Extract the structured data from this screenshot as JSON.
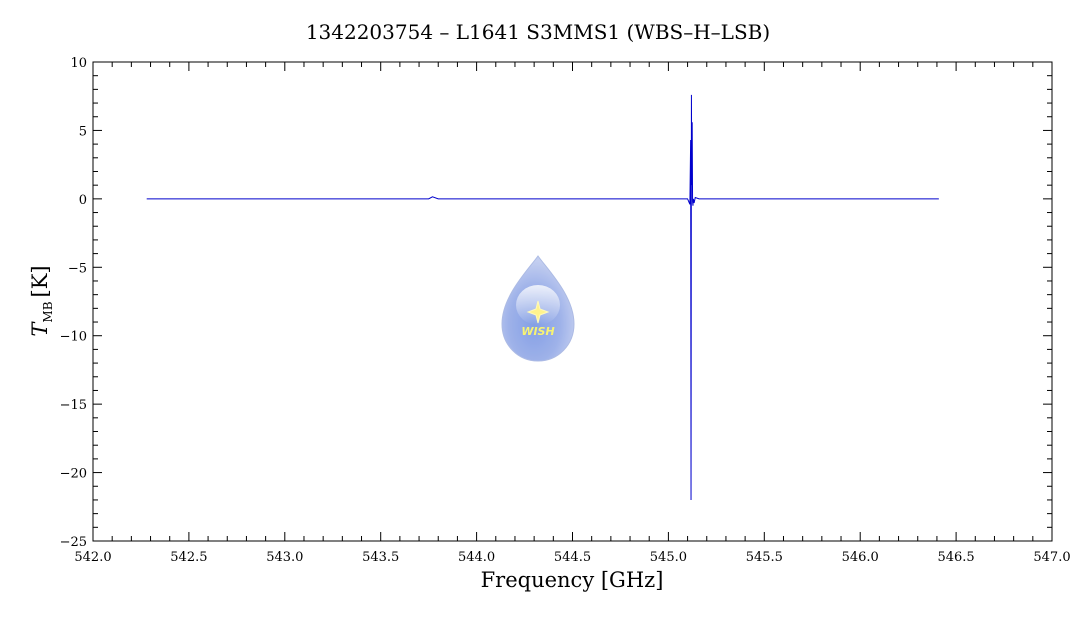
{
  "chart_data": {
    "type": "line",
    "title": "1342203754 – L1641 S3MMS1 (WBS–H–LSB)",
    "xlabel": "Frequency [GHz]",
    "ylabel_main": "T",
    "ylabel_sub": "MB",
    "ylabel_unit": "[K]",
    "xlim": [
      542.0,
      547.0
    ],
    "ylim": [
      -25,
      10
    ],
    "x_ticks": [
      "542.0",
      "542.5",
      "543.0",
      "543.5",
      "544.0",
      "544.5",
      "545.0",
      "545.5",
      "546.0",
      "546.5",
      "547.0"
    ],
    "y_ticks": [
      "10",
      "5",
      "0",
      "−5",
      "−10",
      "−15",
      "−20",
      "−25"
    ],
    "grid": false,
    "series": [
      {
        "color": "#0000cc",
        "x": [
          542.28,
          542.6,
          543.0,
          543.4,
          543.75,
          543.77,
          543.8,
          544.2,
          544.6,
          545.0,
          545.1,
          545.112,
          545.116,
          545.118,
          545.12,
          545.122,
          545.124,
          545.126,
          545.128,
          545.13,
          545.134,
          545.14,
          545.16,
          545.2,
          545.5,
          546.0,
          546.41
        ],
        "y": [
          0.0,
          0.0,
          0.0,
          0.0,
          0.0,
          0.15,
          0.0,
          0.0,
          0.0,
          0.0,
          0.0,
          -0.4,
          4.3,
          -22.0,
          7.6,
          1.0,
          5.6,
          -0.2,
          -0.5,
          0.0,
          -0.3,
          0.1,
          0.0,
          0.0,
          0.0,
          0.0,
          0.0
        ]
      }
    ]
  },
  "logo": {
    "text": "WISH"
  }
}
